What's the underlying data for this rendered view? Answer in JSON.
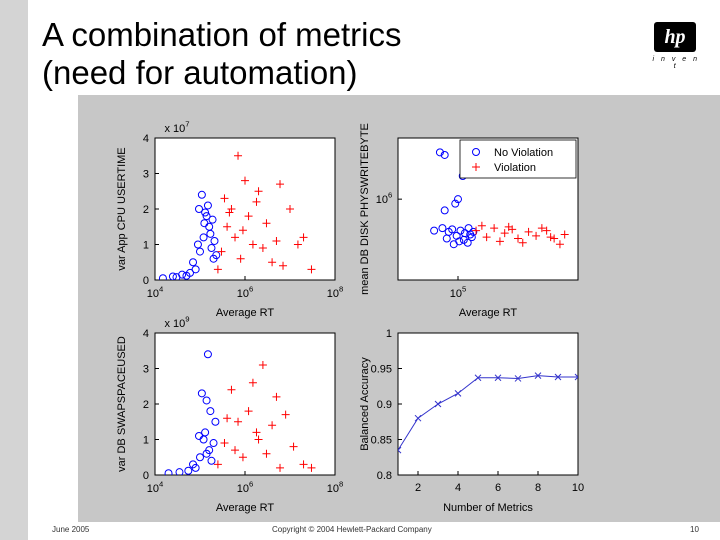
{
  "slide": {
    "title_line1": "A combination of metrics",
    "title_line2": "(need for automation)",
    "logo_text": "hp",
    "logo_tagline": "i n v e n t",
    "footer_date": "June 2005",
    "footer_copyright": "Copyright © 2004 Hewlett-Packard Company",
    "page_number": "10"
  },
  "colors": {
    "no_violation": "#0000ff",
    "violation": "#ff0000",
    "line": "#3333cc",
    "figure_bg": "#c7c7c7",
    "sidebar": "#d4d4d4"
  },
  "chart_data": [
    {
      "type": "scatter",
      "panel": "top-left",
      "xlabel": "Average RT",
      "ylabel": "var App CPU USERTIME",
      "x_scale": "log",
      "xlim": [
        10000,
        100000000
      ],
      "x_ticks": [
        {
          "mantissa": "10",
          "exponent": "4",
          "value": 10000
        },
        {
          "mantissa": "10",
          "exponent": "6",
          "value": 1000000
        },
        {
          "mantissa": "10",
          "exponent": "8",
          "value": 100000000
        }
      ],
      "ylim": [
        0,
        4
      ],
      "y_ticks": [
        "0",
        "1",
        "2",
        "3",
        "4"
      ],
      "y_multiplier": {
        "mantissa": "x 10",
        "exponent": "7"
      },
      "series": [
        {
          "name": "No Violation",
          "marker": "circle",
          "points": [
            [
              15000,
              0.05
            ],
            [
              25000,
              0.1
            ],
            [
              40000,
              0.15
            ],
            [
              60000,
              0.2
            ],
            [
              80000,
              0.3
            ],
            [
              100000,
              0.8
            ],
            [
              120000,
              1.2
            ],
            [
              140000,
              1.8
            ],
            [
              90000,
              1.0
            ],
            [
              110000,
              2.4
            ],
            [
              130000,
              1.9
            ],
            [
              160000,
              1.5
            ],
            [
              180000,
              0.9
            ],
            [
              200000,
              0.6
            ],
            [
              30000,
              0.08
            ],
            [
              70000,
              0.5
            ],
            [
              150000,
              2.1
            ],
            [
              170000,
              1.3
            ],
            [
              50000,
              0.12
            ],
            [
              190000,
              1.7
            ],
            [
              210000,
              1.1
            ],
            [
              230000,
              0.7
            ],
            [
              95000,
              2.0
            ],
            [
              125000,
              1.6
            ]
          ]
        },
        {
          "name": "Violation",
          "marker": "plus",
          "points": [
            [
              250000,
              0.3
            ],
            [
              300000,
              0.8
            ],
            [
              400000,
              1.5
            ],
            [
              500000,
              2.0
            ],
            [
              600000,
              1.2
            ],
            [
              800000,
              0.6
            ],
            [
              1000000,
              2.8
            ],
            [
              1200000,
              1.8
            ],
            [
              1500000,
              1.0
            ],
            [
              2000000,
              2.5
            ],
            [
              2500000,
              0.9
            ],
            [
              3000000,
              1.6
            ],
            [
              4000000,
              0.5
            ],
            [
              5000000,
              1.1
            ],
            [
              7000000,
              0.4
            ],
            [
              10000000,
              2.0
            ],
            [
              15000000,
              1.0
            ],
            [
              20000000,
              1.2
            ],
            [
              30000000,
              0.3
            ],
            [
              700000,
              3.5
            ],
            [
              350000,
              2.3
            ],
            [
              450000,
              1.9
            ],
            [
              900000,
              1.4
            ],
            [
              1800000,
              2.2
            ],
            [
              6000000,
              2.7
            ]
          ]
        }
      ]
    },
    {
      "type": "scatter",
      "panel": "top-right",
      "xlabel": "Average RT",
      "ylabel": "mean DB DISK PHYSWRITEBYTE",
      "x_scale": "log",
      "xlim": [
        10000,
        10000000
      ],
      "x_ticks": [
        {
          "mantissa": "10",
          "exponent": "5",
          "value": 100000
        }
      ],
      "y_scale": "log",
      "ylim": [
        400000,
        2000000
      ],
      "y_ticks": [
        {
          "mantissa": "10",
          "exponent": "6",
          "value": 1000000
        }
      ],
      "legend": {
        "placement": "top-right",
        "entries": [
          "No Violation",
          "Violation"
        ]
      },
      "series": [
        {
          "name": "No Violation",
          "marker": "circle",
          "points": [
            [
              50000,
              1700000
            ],
            [
              60000,
              1650000
            ],
            [
              120000,
              1300000
            ],
            [
              90000,
              950000
            ],
            [
              100000,
              1000000
            ],
            [
              60000,
              880000
            ],
            [
              40000,
              700000
            ],
            [
              55000,
              720000
            ],
            [
              70000,
              690000
            ],
            [
              80000,
              710000
            ],
            [
              95000,
              660000
            ],
            [
              110000,
              700000
            ],
            [
              130000,
              680000
            ],
            [
              150000,
              720000
            ],
            [
              170000,
              650000
            ],
            [
              65000,
              640000
            ],
            [
              85000,
              600000
            ],
            [
              105000,
              620000
            ],
            [
              125000,
              630000
            ],
            [
              145000,
              610000
            ],
            [
              160000,
              670000
            ],
            [
              180000,
              690000
            ]
          ]
        },
        {
          "name": "Violation",
          "marker": "plus",
          "points": [
            [
              200000,
              700000
            ],
            [
              300000,
              650000
            ],
            [
              400000,
              720000
            ],
            [
              600000,
              680000
            ],
            [
              800000,
              710000
            ],
            [
              1000000,
              640000
            ],
            [
              1500000,
              690000
            ],
            [
              2000000,
              660000
            ],
            [
              3000000,
              700000
            ],
            [
              4000000,
              640000
            ],
            [
              5000000,
              600000
            ],
            [
              6000000,
              670000
            ],
            [
              250000,
              740000
            ],
            [
              500000,
              620000
            ],
            [
              700000,
              730000
            ],
            [
              1200000,
              610000
            ],
            [
              2500000,
              720000
            ],
            [
              3500000,
              650000
            ]
          ]
        }
      ]
    },
    {
      "type": "scatter",
      "panel": "bottom-left",
      "xlabel": "Average RT",
      "ylabel": "var DB SWAPSPACEUSED",
      "x_scale": "log",
      "xlim": [
        10000,
        100000000
      ],
      "x_ticks": [
        {
          "mantissa": "10",
          "exponent": "4",
          "value": 10000
        },
        {
          "mantissa": "10",
          "exponent": "6",
          "value": 1000000
        },
        {
          "mantissa": "10",
          "exponent": "8",
          "value": 100000000
        }
      ],
      "ylim": [
        0,
        4
      ],
      "y_ticks": [
        "0",
        "1",
        "2",
        "3",
        "4"
      ],
      "y_multiplier": {
        "mantissa": "x 10",
        "exponent": "9"
      },
      "series": [
        {
          "name": "No Violation",
          "marker": "circle",
          "points": [
            [
              20000,
              0.05
            ],
            [
              35000,
              0.08
            ],
            [
              55000,
              0.12
            ],
            [
              80000,
              0.2
            ],
            [
              100000,
              0.5
            ],
            [
              120000,
              1.0
            ],
            [
              150000,
              3.4
            ],
            [
              110000,
              2.3
            ],
            [
              140000,
              2.1
            ],
            [
              130000,
              1.2
            ],
            [
              95000,
              1.1
            ],
            [
              160000,
              0.7
            ],
            [
              180000,
              0.4
            ],
            [
              200000,
              0.9
            ],
            [
              220000,
              1.5
            ],
            [
              70000,
              0.3
            ],
            [
              140000,
              0.6
            ],
            [
              170000,
              1.8
            ]
          ]
        },
        {
          "name": "Violation",
          "marker": "plus",
          "points": [
            [
              250000,
              0.3
            ],
            [
              350000,
              0.9
            ],
            [
              500000,
              2.4
            ],
            [
              700000,
              1.5
            ],
            [
              900000,
              0.5
            ],
            [
              1200000,
              1.8
            ],
            [
              1500000,
              2.6
            ],
            [
              2000000,
              1.0
            ],
            [
              2500000,
              3.1
            ],
            [
              3000000,
              0.6
            ],
            [
              4000000,
              1.4
            ],
            [
              6000000,
              0.2
            ],
            [
              8000000,
              1.7
            ],
            [
              12000000,
              0.8
            ],
            [
              20000000,
              0.3
            ],
            [
              30000000,
              0.2
            ],
            [
              400000,
              1.6
            ],
            [
              600000,
              0.7
            ],
            [
              1800000,
              1.2
            ],
            [
              5000000,
              2.2
            ]
          ]
        }
      ]
    },
    {
      "type": "line",
      "panel": "bottom-right",
      "xlabel": "Number of Metrics",
      "ylabel": "Balanced Accuracy",
      "xlim": [
        1,
        10
      ],
      "ylim": [
        0.8,
        1
      ],
      "x_ticks": [
        "2",
        "4",
        "6",
        "8",
        "10"
      ],
      "y_ticks": [
        "0.8",
        "0.85",
        "0.9",
        "0.95",
        "1"
      ],
      "x": [
        1,
        2,
        3,
        4,
        5,
        6,
        7,
        8,
        9,
        10
      ],
      "y": [
        0.835,
        0.88,
        0.9,
        0.915,
        0.937,
        0.937,
        0.936,
        0.94,
        0.938,
        0.938
      ]
    }
  ]
}
